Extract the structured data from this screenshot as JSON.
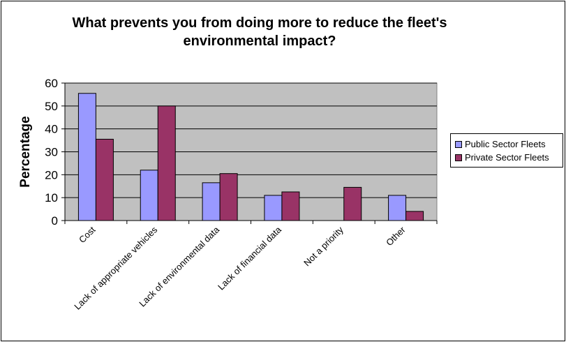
{
  "chart_data": {
    "type": "bar",
    "title": "What prevents you from doing more to reduce the fleet's\nenvironmental impact?",
    "ylabel": "Percentage",
    "xlabel": "",
    "ylim": [
      0,
      60
    ],
    "yticks": [
      0,
      10,
      20,
      30,
      40,
      50,
      60
    ],
    "grid": true,
    "legend_position": "right",
    "plot_background": "#c0c0c0",
    "categories": [
      "Cost",
      "Lack of appropriate vehicles",
      "Lack of environmental data",
      "Lack of financial data",
      "Not a priority",
      "Other"
    ],
    "series": [
      {
        "name": "Public Sector Fleets",
        "color": "#9999ff",
        "values": [
          55.5,
          22,
          16.5,
          11,
          0,
          11
        ]
      },
      {
        "name": "Private Sector Fleets",
        "color": "#993366",
        "values": [
          35.5,
          50,
          20.5,
          12.5,
          14.5,
          4
        ]
      }
    ]
  }
}
